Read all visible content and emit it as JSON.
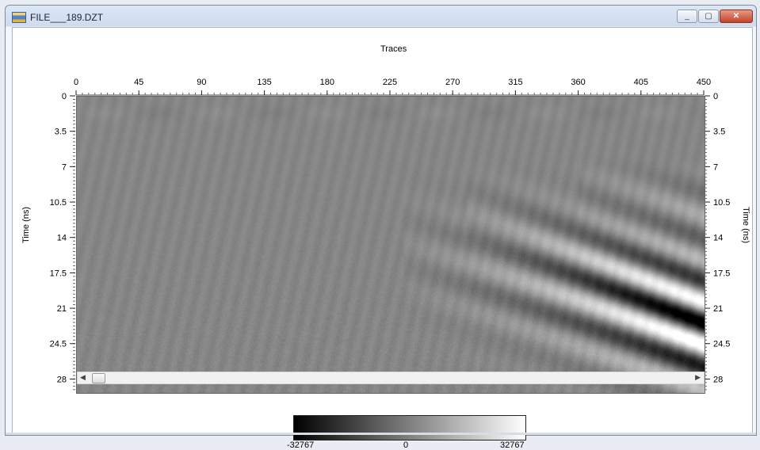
{
  "window": {
    "title": "FILE___189.DZT",
    "app_icon": "radar-file-icon",
    "controls": [
      "minimize-icon",
      "maximize-icon",
      "close-icon"
    ]
  },
  "plot": {
    "x_axis_label": "Traces",
    "x_ticks": [
      "0",
      "45",
      "90",
      "135",
      "180",
      "225",
      "270",
      "315",
      "360",
      "405",
      "450"
    ],
    "x_range": [
      0,
      450
    ],
    "y_label_left": "Time (ns)",
    "y_label_right": "Time (ns)",
    "y_ticks": [
      "0",
      "3.5",
      "7",
      "10.5",
      "14",
      "17.5",
      "21",
      "24.5",
      "28"
    ],
    "y_range": [
      0,
      29.3
    ]
  },
  "colorbar": {
    "min_label": "-32767",
    "mid_label": "0",
    "max_label": "32767"
  }
}
